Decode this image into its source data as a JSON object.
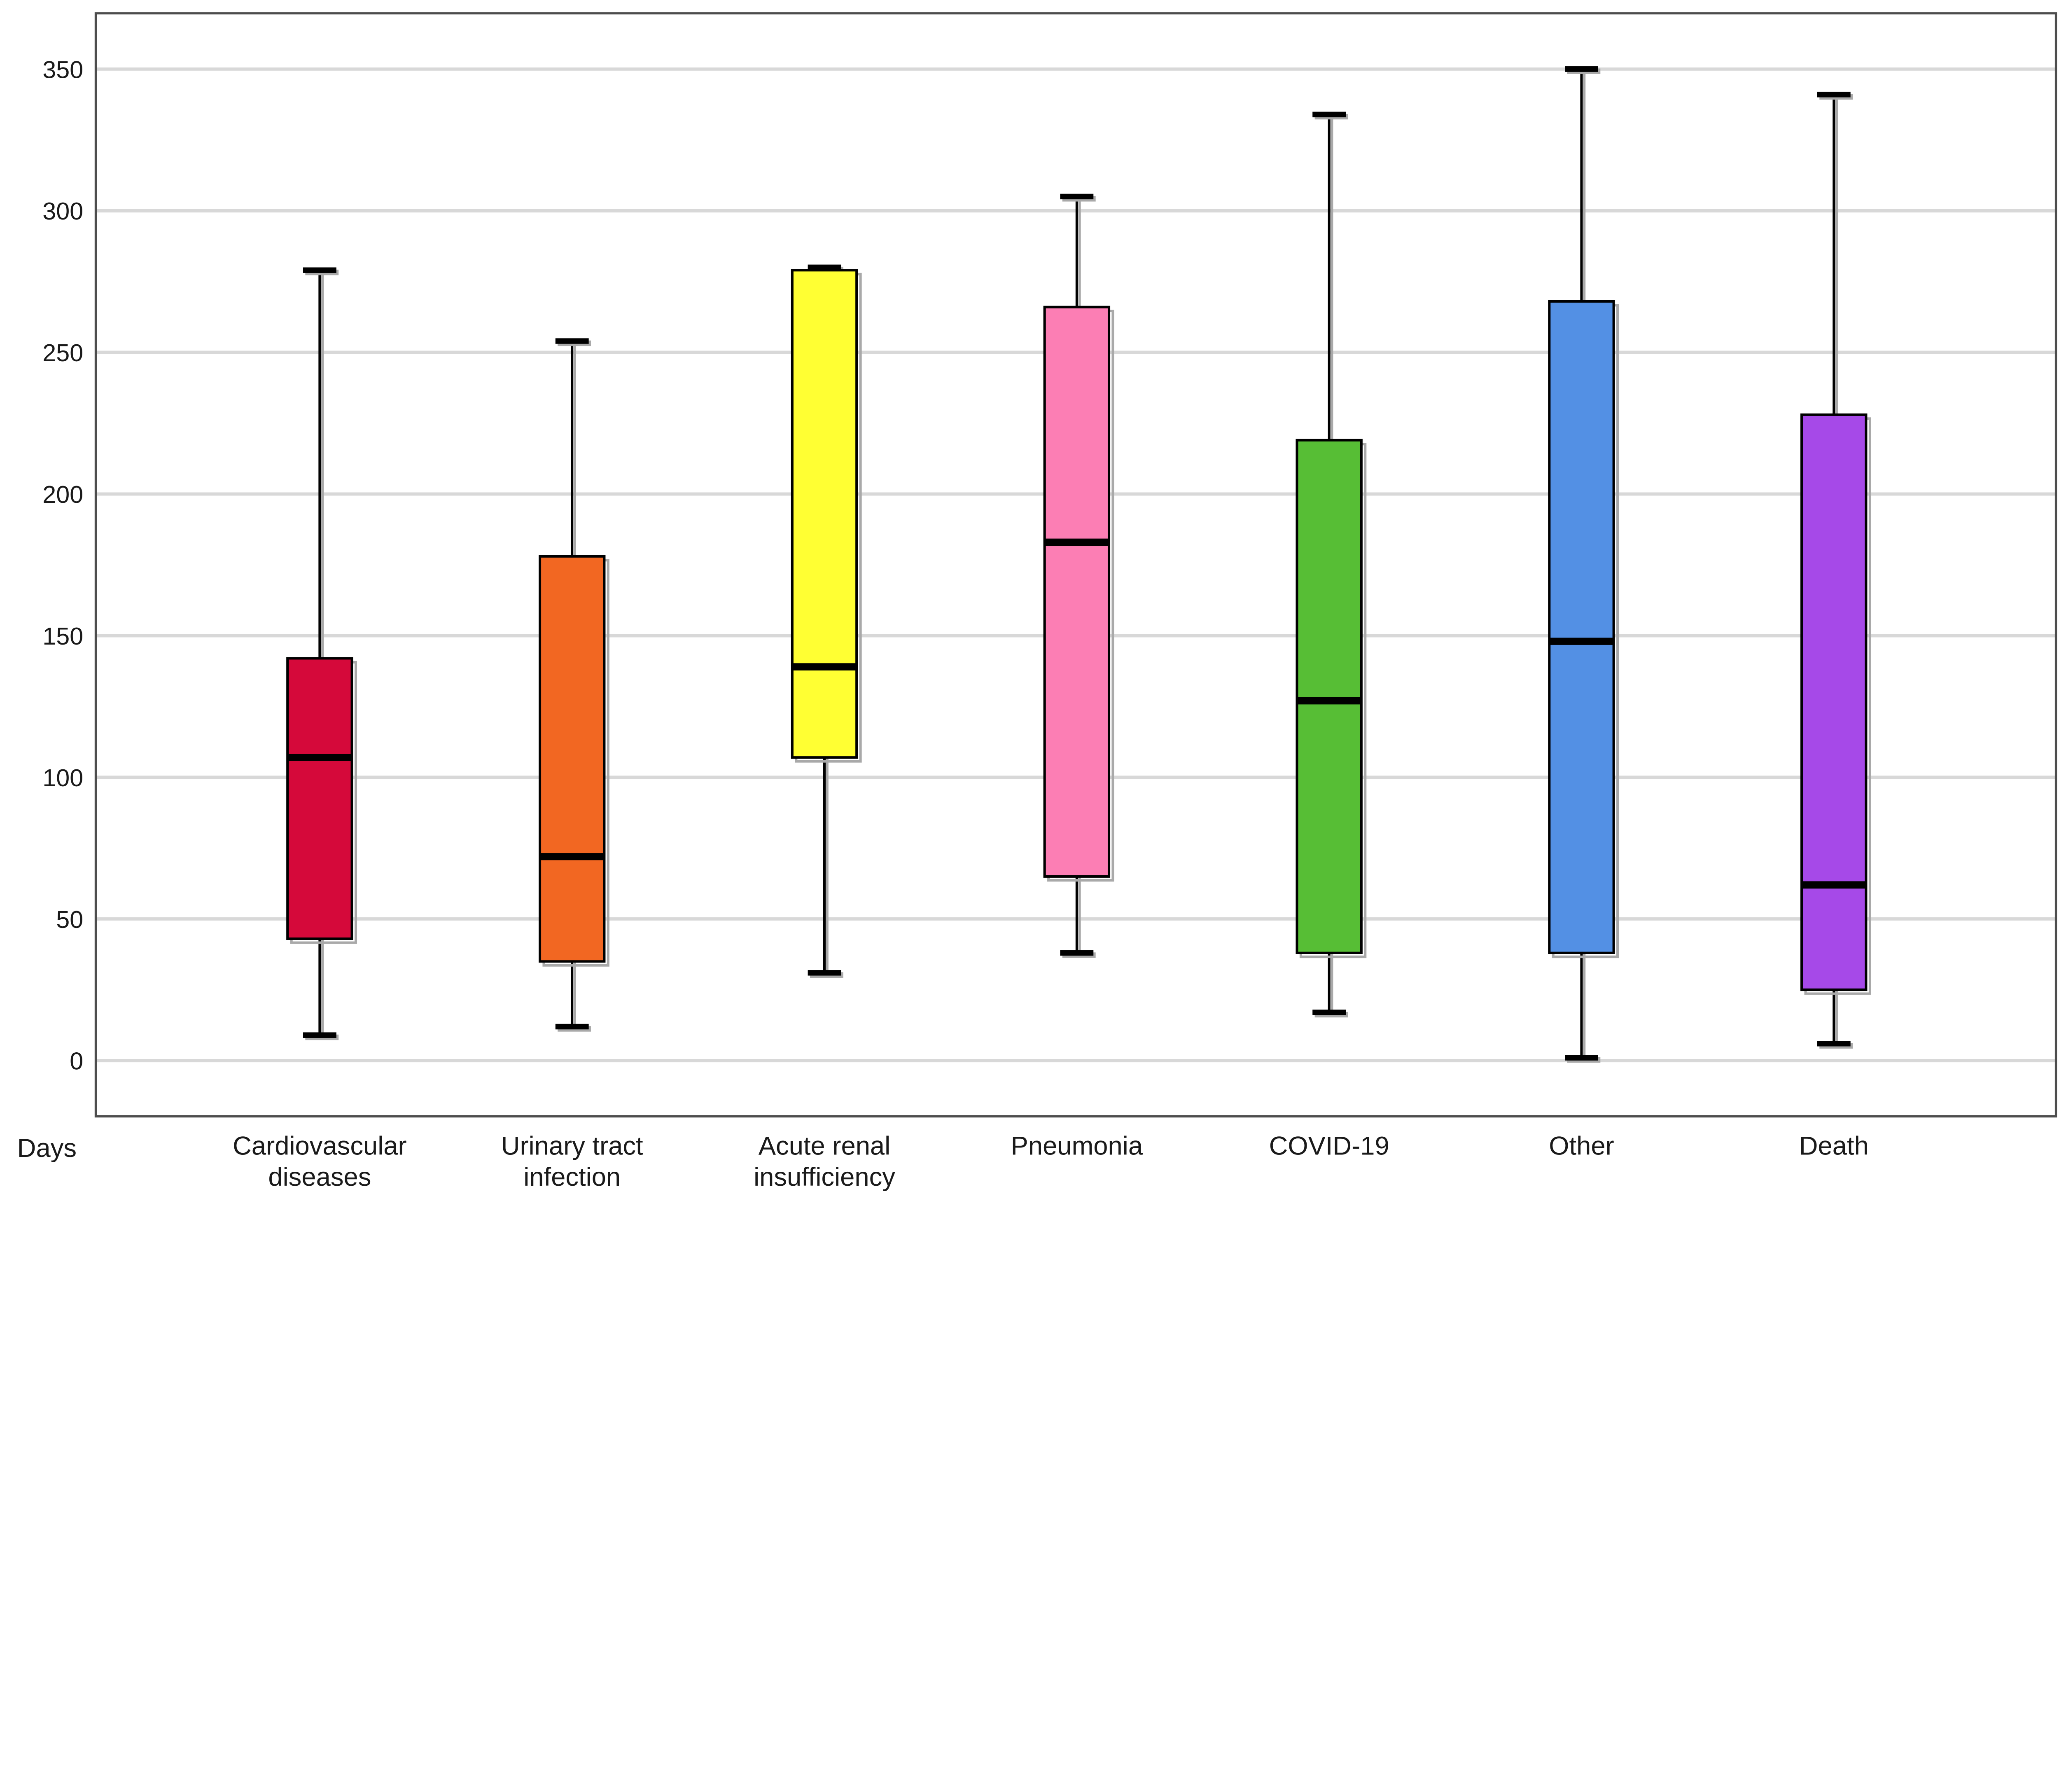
{
  "chart_data": {
    "type": "boxplot",
    "title": "",
    "x_axis_unit_label": "Days",
    "ylabel": "",
    "xlabel": "",
    "ylim": [
      0,
      350
    ],
    "ytick_step": 50,
    "yticks": [
      "0",
      "50",
      "100",
      "150",
      "200",
      "250",
      "300",
      "350"
    ],
    "grid": "horizontal",
    "legend_position": "none",
    "axis_color": "#4d4d4d",
    "gridline_color": "#d8d8d8",
    "median_color": "#000000",
    "whisker_color": "#000000",
    "shadow_color": "#a9a9a9",
    "categories": [
      "Cardiovascular diseases",
      "Urinary tract infection",
      "Acute renal insufficiency",
      "Pneumonia",
      "COVID-19",
      "Other",
      "Death"
    ],
    "series": [
      {
        "label": "Cardiovascular diseases",
        "label_lines": [
          "Cardiovascular",
          "diseases"
        ],
        "color": "#D5093A",
        "min": 9,
        "q1": 43,
        "median": 107,
        "q3": 142,
        "max": 279
      },
      {
        "label": "Urinary tract infection",
        "label_lines": [
          "Urinary tract",
          "infection"
        ],
        "color": "#F26722",
        "min": 12,
        "q1": 35,
        "median": 72,
        "q3": 178,
        "max": 254
      },
      {
        "label": "Acute renal insufficiency",
        "label_lines": [
          "Acute renal",
          "insufficiency"
        ],
        "color": "#FFFF33",
        "min": 31,
        "q1": 107,
        "median": 139,
        "q3": 279,
        "max": 280
      },
      {
        "label": "Pneumonia",
        "label_lines": [
          "Pneumonia"
        ],
        "color": "#FC7EB4",
        "min": 38,
        "q1": 65,
        "median": 183,
        "q3": 266,
        "max": 305
      },
      {
        "label": "COVID-19",
        "label_lines": [
          "COVID-19"
        ],
        "color": "#57BE35",
        "min": 17,
        "q1": 38,
        "median": 127,
        "q3": 219,
        "max": 334
      },
      {
        "label": "Other",
        "label_lines": [
          "Other"
        ],
        "color": "#5390E4",
        "min": 1,
        "q1": 38,
        "median": 148,
        "q3": 268,
        "max": 350
      },
      {
        "label": "Death",
        "label_lines": [
          "Death"
        ],
        "color": "#A649E8",
        "min": 6,
        "q1": 25,
        "median": 62,
        "q3": 228,
        "max": 341
      }
    ]
  }
}
